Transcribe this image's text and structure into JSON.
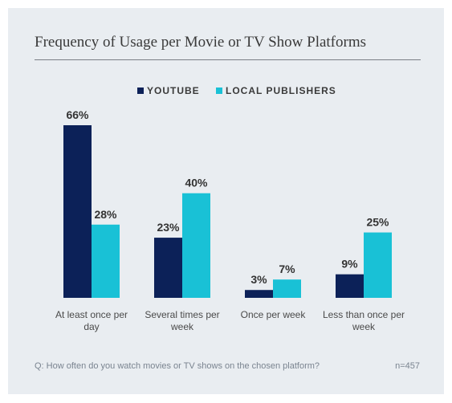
{
  "chart_data": {
    "type": "bar",
    "title": "Frequency of Usage per Movie or TV Show Platforms",
    "categories": [
      [
        "At least once per",
        "day"
      ],
      [
        "Several times per",
        "week"
      ],
      [
        "Once per week"
      ],
      [
        "Less than once per",
        "week"
      ]
    ],
    "series": [
      {
        "name": "YOUTUBE",
        "values": [
          66,
          23,
          3,
          9
        ],
        "labels": [
          "66%",
          "23%",
          "3%",
          "9%"
        ]
      },
      {
        "name": "LOCAL PUBLISHERS",
        "values": [
          28,
          40,
          7,
          25
        ],
        "labels": [
          "28%",
          "40%",
          "7%",
          "25%"
        ]
      }
    ],
    "legend_position": "top-center",
    "ylim": [
      0,
      66
    ],
    "grid": false,
    "footnote": "Q: How often do you watch movies or TV shows on the chosen platform?",
    "sample_size": "n=457"
  },
  "colors": {
    "youtube": "#0c2158",
    "local": "#19c1d6",
    "background": "#e9edf1",
    "text": "#3a3a3a",
    "muted": "#7a8490"
  }
}
